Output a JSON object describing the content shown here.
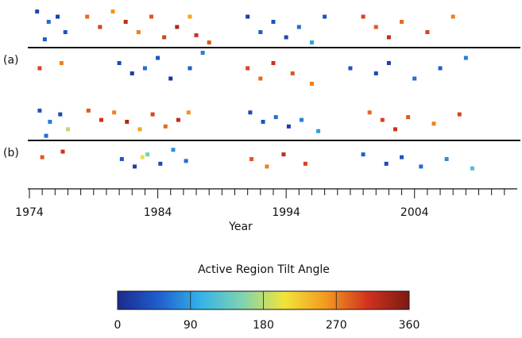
{
  "chart_data": {
    "type": "scatter",
    "x_label": "Year",
    "xlim": [
      1974,
      2012
    ],
    "xticks": [
      1974,
      1984,
      1994,
      2004
    ],
    "xminorticks": [
      1975,
      1976,
      1977,
      1978,
      1979,
      1980,
      1981,
      1982,
      1983,
      1985,
      1986,
      1987,
      1988,
      1989,
      1990,
      1991,
      1992,
      1993,
      1995,
      1996,
      1997,
      1998,
      1999,
      2000,
      2001,
      2002,
      2003,
      2005,
      2006,
      2007,
      2008,
      2009,
      2010,
      2011
    ],
    "colormap": [
      "#1c2a8c",
      "#1f5fcf",
      "#35b4e8",
      "#7fd3b0",
      "#f2e43a",
      "#f39a1f",
      "#d2321e",
      "#7a1a14"
    ],
    "panels": [
      {
        "label": "(a)",
        "ylim": [
          -40,
          40
        ],
        "x": [
          1974.6,
          1975.5,
          1976.2,
          1976.8,
          1975.2,
          1974.8,
          1976.5,
          1978.5,
          1979.5,
          1980.5,
          1981.5,
          1982.5,
          1983.5,
          1984.5,
          1985.5,
          1986.5,
          1987,
          1988,
          1981,
          1982,
          1983,
          1984,
          1985,
          1986.5,
          1987.5,
          1991,
          1992,
          1993,
          1994,
          1995,
          1996,
          1997,
          1991,
          1992,
          1993,
          1994.5,
          1996,
          2000,
          2001,
          2002,
          2003,
          2005,
          2007,
          1999,
          2001,
          2002,
          2004,
          2006,
          2008
        ],
        "lat": [
          35,
          25,
          30,
          15,
          8,
          -20,
          -15,
          30,
          20,
          35,
          25,
          15,
          30,
          10,
          20,
          30,
          12,
          5,
          -15,
          -25,
          -20,
          -10,
          -30,
          -20,
          -5,
          30,
          15,
          25,
          10,
          20,
          5,
          30,
          -20,
          -30,
          -15,
          -25,
          -35,
          30,
          20,
          10,
          25,
          15,
          30,
          -20,
          -25,
          -15,
          -30,
          -20,
          -10
        ],
        "angle": [
          30,
          60,
          20,
          40,
          50,
          300,
          270,
          280,
          300,
          260,
          320,
          270,
          290,
          300,
          330,
          250,
          310,
          290,
          30,
          20,
          60,
          40,
          10,
          50,
          70,
          20,
          50,
          40,
          30,
          60,
          90,
          40,
          300,
          280,
          310,
          290,
          270,
          300,
          290,
          320,
          280,
          300,
          270,
          40,
          30,
          20,
          60,
          50,
          70
        ]
      },
      {
        "label": "(b)",
        "ylim": [
          -40,
          40
        ],
        "x": [
          1974.8,
          1975.6,
          1976.4,
          1977,
          1975.3,
          1975,
          1976.6,
          1978.6,
          1979.6,
          1980.6,
          1981.6,
          1982.6,
          1983.6,
          1984.6,
          1985.6,
          1986.4,
          1981.2,
          1982.2,
          1983.2,
          1984.2,
          1985.2,
          1986.2,
          1982.8,
          1991.2,
          1992.2,
          1993.2,
          1994.2,
          1995.2,
          1996.5,
          1991.3,
          1992.5,
          1993.8,
          1995.5,
          2000.5,
          2001.5,
          2002.5,
          2003.5,
          2005.5,
          2007.5,
          2000,
          2001.8,
          2003,
          2004.5,
          2006.5,
          2008.5
        ],
        "lat": [
          32,
          20,
          28,
          12,
          5,
          -18,
          -12,
          32,
          22,
          30,
          20,
          12,
          28,
          15,
          22,
          30,
          -20,
          -28,
          -15,
          -25,
          -10,
          -22,
          -18,
          30,
          20,
          25,
          15,
          22,
          10,
          -20,
          -28,
          -15,
          -25,
          30,
          22,
          12,
          25,
          18,
          28,
          -15,
          -25,
          -18,
          -28,
          -20,
          -30
        ],
        "angle": [
          40,
          70,
          30,
          180,
          60,
          290,
          310,
          290,
          310,
          270,
          330,
          250,
          300,
          280,
          320,
          260,
          40,
          20,
          150,
          30,
          80,
          60,
          200,
          30,
          40,
          60,
          20,
          70,
          90,
          290,
          270,
          320,
          300,
          280,
          300,
          310,
          290,
          270,
          300,
          50,
          30,
          40,
          60,
          80,
          120
        ]
      }
    ],
    "colorbar": {
      "title": "Active Region Tilt Angle",
      "clim": [
        0,
        360
      ],
      "ticks": [
        0,
        90,
        180,
        270,
        360
      ]
    }
  }
}
